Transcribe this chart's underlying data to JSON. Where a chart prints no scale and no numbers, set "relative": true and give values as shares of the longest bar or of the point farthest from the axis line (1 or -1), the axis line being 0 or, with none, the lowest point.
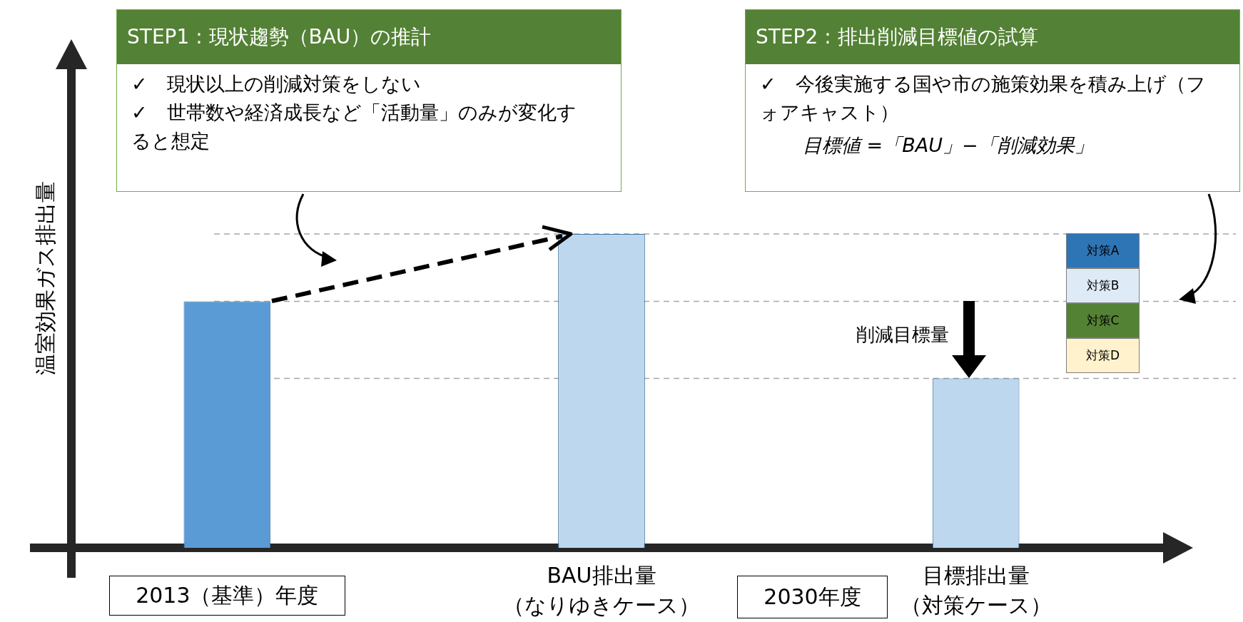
{
  "chart_data": {
    "type": "bar",
    "relative": true,
    "ylabel": "温室効果ガス排出量",
    "categories": [
      "2013（基準）年度",
      "BAU排出量（なりゆきケース）",
      "目標排出量（対策ケース）"
    ],
    "values": [
      0.785,
      1,
      0.54
    ],
    "colors": [
      "#5b9bd5",
      "#bdd7ee",
      "#bdd7ee"
    ],
    "grid": false,
    "legend": false,
    "ref_lines": [
      {
        "axis": "y",
        "value": 0.785,
        "color": "#a6a6a6",
        "line_style": "dashed"
      },
      {
        "axis": "y",
        "value": 1,
        "color": "#a6a6a6",
        "line_style": "dashed"
      },
      {
        "axis": "y",
        "value": 0.54,
        "color": "#a6a6a6",
        "line_style": "dashed"
      }
    ],
    "annotations": [
      "STEP1 : 現状趨勢（BAU）の推計",
      "✓　現状以上の削減対策をしない",
      "✓　世帯数や経済成長など「活動量」のみが変化すると想定",
      "STEP2 : 排出削減目標値の試算",
      "✓　今後実施する国や市の施策効果を積み上げ（フォアキャスト）",
      "目標値 =「BAU」−「削減効果」",
      "削減目標量",
      "対策A",
      "対策B",
      "対策C",
      "対策D",
      "2030年度"
    ]
  }
}
